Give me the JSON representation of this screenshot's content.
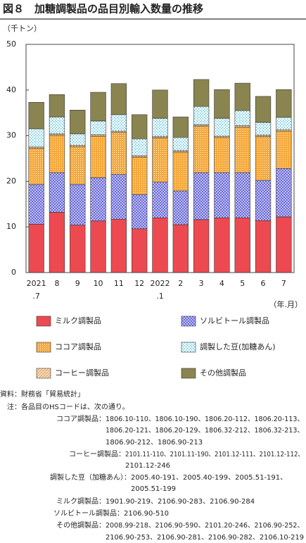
{
  "chart_data": {
    "type": "stacked_bar",
    "title": "図８　加糖調製品の品目別輸入数量の推移",
    "y_label": "（千トン）",
    "x_label": "（年.月）",
    "categories": [
      "2021\n.7",
      "8",
      "9",
      "10",
      "11",
      "12",
      "2022\n.1",
      "2",
      "3",
      "4",
      "5",
      "6",
      "7"
    ],
    "series": [
      {
        "name": "ミルク調製品",
        "color": "#ec4a50",
        "pattern": "solid",
        "values": [
          10.6,
          13.2,
          10.4,
          11.3,
          11.7,
          9.6,
          12.0,
          10.5,
          11.6,
          12.0,
          12.0,
          11.4,
          12.2
        ]
      },
      {
        "name": "ソルビトール調製品",
        "color": "#5a5ad8",
        "pattern": "crosshatch",
        "values": [
          8.7,
          8.7,
          8.9,
          9.5,
          9.8,
          7.5,
          7.8,
          7.4,
          10.3,
          9.9,
          9.9,
          8.8,
          10.6
        ]
      },
      {
        "name": "ココア調製品",
        "color": "#f5a93c",
        "pattern": "dots",
        "values": [
          7.9,
          8.2,
          8.3,
          9.1,
          9.2,
          8.2,
          9.7,
          8.5,
          10.2,
          7.7,
          10.0,
          9.6,
          8.2
        ]
      },
      {
        "name": "コーヒー調製品",
        "color": "#e0904a",
        "pattern": "diagonal",
        "values": [
          0.3,
          0.3,
          0.3,
          0.3,
          0.3,
          0.3,
          0.3,
          0.3,
          0.3,
          0.3,
          0.3,
          0.3,
          0.3
        ]
      },
      {
        "name": "調製した豆(加糖あん)",
        "color": "#3cb8d8",
        "pattern": "checker",
        "values": [
          4.0,
          3.7,
          2.5,
          3.0,
          3.6,
          3.7,
          4.0,
          2.9,
          4.0,
          3.9,
          3.3,
          2.8,
          2.7
        ]
      },
      {
        "name": "その他調製品",
        "color": "#8a8450",
        "pattern": "solid",
        "values": [
          5.8,
          4.9,
          5.2,
          6.3,
          6.8,
          5.3,
          6.2,
          4.5,
          5.9,
          6.3,
          6.0,
          5.7,
          6.1
        ]
      }
    ],
    "ylim": [
      0,
      50
    ],
    "yticks": [
      0,
      10,
      20,
      30,
      40,
      50
    ],
    "grid": false
  },
  "notes": {
    "source": "資料：財務省「貿易統計」",
    "note": "注：各品目のHSコードは、次の通り。",
    "codes": [
      {
        "label": "ココア調製品：",
        "lines": [
          "1806.10-110、1806.10-190、1806.20-112、1806.20-113、",
          "1806.20-121、1806.20-129、1806.32-212、1806.32-213、",
          "1806.90-212、1806.90-213"
        ]
      },
      {
        "label": "コーヒー調製品：",
        "lines": [
          "2101.11-110、2101.11-190、2101.12-111、2101.12-112、",
          "2101.12-246"
        ]
      },
      {
        "label": "調製した豆（加糖あん）：",
        "lines": [
          "2005.40-191、2005.40-199、2005.51-191、",
          "2005.51-199"
        ]
      },
      {
        "label": "ミルク調製品：",
        "lines": [
          "1901.90-219、2106.90-283、2106.90-284"
        ]
      },
      {
        "label": "ソルビトール調製品：",
        "lines": [
          "2106.90-510"
        ]
      },
      {
        "label": "その他調製品：",
        "lines": [
          "2008.99-218、2106.90-590、2101.20-246、2106.90-252、",
          "2106.90-253、2106.90-281、2106.90-282、2106.10-219"
        ]
      }
    ]
  }
}
